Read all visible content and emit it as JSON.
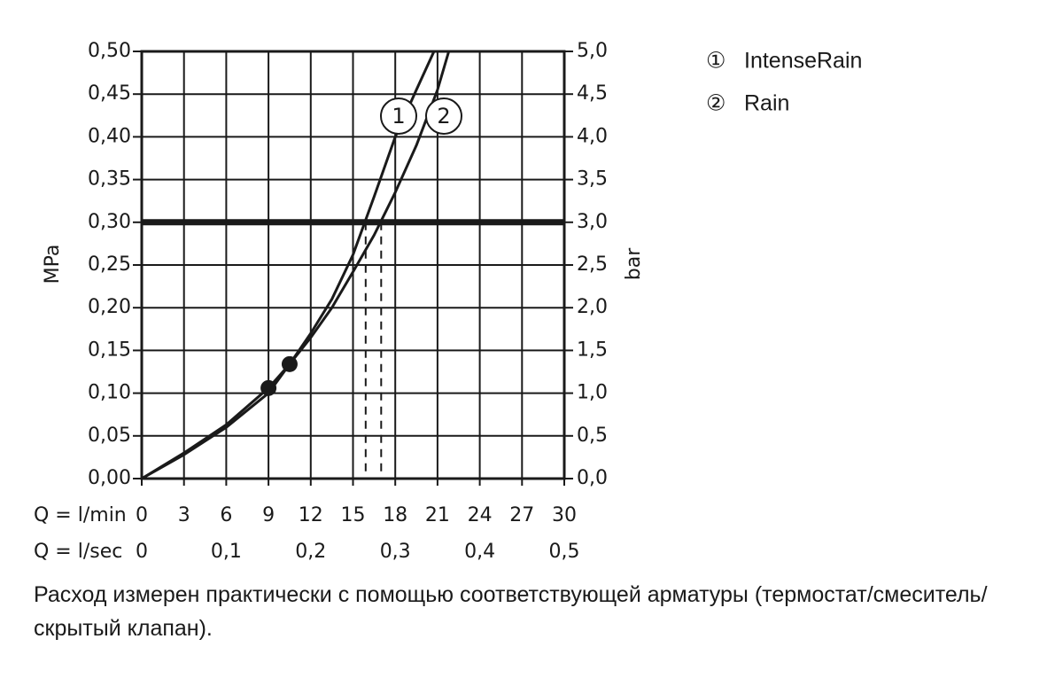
{
  "chart_data": {
    "type": "line",
    "x_label": "Q = l/min",
    "x2_label": "Q = l/sec",
    "y_label": "MPa",
    "y2_label": "bar",
    "xlim": [
      0,
      30
    ],
    "xticks": [
      0,
      3,
      6,
      9,
      12,
      15,
      18,
      21,
      24,
      27,
      30
    ],
    "x2lim": [
      0,
      0.5
    ],
    "x2ticks": [
      {
        "value": 0,
        "label": "0"
      },
      {
        "value": 0.1,
        "label": "0,1"
      },
      {
        "value": 0.2,
        "label": "0,2"
      },
      {
        "value": 0.3,
        "label": "0,3"
      },
      {
        "value": 0.4,
        "label": "0,4"
      },
      {
        "value": 0.5,
        "label": "0,5"
      }
    ],
    "ylim": [
      0,
      0.5
    ],
    "yticks": [
      {
        "value": 0,
        "label": "0,00"
      },
      {
        "value": 0.05,
        "label": "0,05"
      },
      {
        "value": 0.1,
        "label": "0,10"
      },
      {
        "value": 0.15,
        "label": "0,15"
      },
      {
        "value": 0.2,
        "label": "0,20"
      },
      {
        "value": 0.25,
        "label": "0,25"
      },
      {
        "value": 0.3,
        "label": "0,30"
      },
      {
        "value": 0.35,
        "label": "0,35"
      },
      {
        "value": 0.4,
        "label": "0,40"
      },
      {
        "value": 0.45,
        "label": "0,45"
      },
      {
        "value": 0.5,
        "label": "0,50"
      }
    ],
    "y2lim": [
      0,
      5
    ],
    "y2ticks": [
      {
        "value": 0,
        "label": "0,0"
      },
      {
        "value": 0.5,
        "label": "0,5"
      },
      {
        "value": 1,
        "label": "1,0"
      },
      {
        "value": 1.5,
        "label": "1,5"
      },
      {
        "value": 2,
        "label": "2,0"
      },
      {
        "value": 2.5,
        "label": "2,5"
      },
      {
        "value": 3,
        "label": "3,0"
      },
      {
        "value": 3.5,
        "label": "3,5"
      },
      {
        "value": 4,
        "label": "4,0"
      },
      {
        "value": 4.5,
        "label": "4,5"
      },
      {
        "value": 5,
        "label": "5,0"
      }
    ],
    "grid": true,
    "reference_pressure": 0.3,
    "series": [
      {
        "name": "IntenseRain",
        "legend_symbol": "①",
        "curve_label": "1",
        "color": "#1a1a1a",
        "x": [
          0,
          3,
          6,
          9,
          10.5,
          12,
          13.5,
          15,
          16.5,
          18,
          19.5,
          20.75
        ],
        "values": [
          0,
          0.03,
          0.063,
          0.106,
          0.134,
          0.17,
          0.21,
          0.262,
          0.33,
          0.4,
          0.455,
          0.5
        ],
        "marker_index": 3,
        "flow_at_reference": 15.9
      },
      {
        "name": "Rain",
        "legend_symbol": "②",
        "curve_label": "2",
        "color": "#1a1a1a",
        "x": [
          0,
          3,
          6,
          9,
          10.5,
          12,
          13.5,
          15,
          16.5,
          18,
          19.5,
          21,
          21.8
        ],
        "values": [
          0,
          0.028,
          0.06,
          0.1,
          0.134,
          0.165,
          0.2,
          0.242,
          0.285,
          0.335,
          0.39,
          0.455,
          0.5
        ],
        "marker_index": 4,
        "flow_at_reference": 17
      }
    ],
    "footnote": "Расход измерен практически с помощью соответствующей арматуры (термостат/смеситель/скрытый клапан)."
  }
}
